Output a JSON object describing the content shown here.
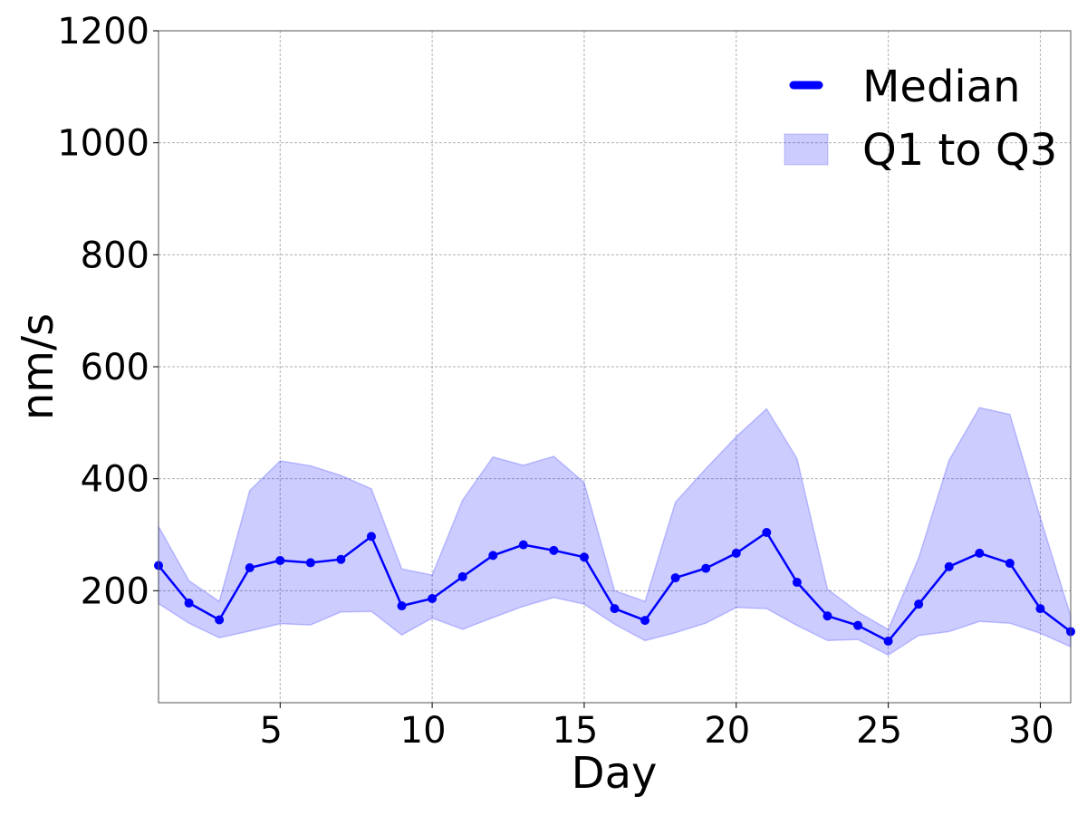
{
  "chart_data": {
    "type": "line",
    "title": "",
    "xlabel": "Day",
    "ylabel": "nm/s",
    "xlim": [
      1,
      31
    ],
    "ylim": [
      0,
      1200
    ],
    "x_ticks": [
      5,
      10,
      15,
      20,
      25,
      30
    ],
    "y_ticks": [
      200,
      400,
      600,
      800,
      1000,
      1200
    ],
    "grid": true,
    "legend_position": "top-right",
    "x": [
      1,
      2,
      3,
      4,
      5,
      6,
      7,
      8,
      9,
      10,
      11,
      12,
      13,
      14,
      15,
      16,
      17,
      18,
      19,
      20,
      21,
      22,
      23,
      24,
      25,
      26,
      27,
      28,
      29,
      30,
      31
    ],
    "series": [
      {
        "name": "Median",
        "color": "#0000ff",
        "values": [
          245,
          178,
          148,
          241,
          254,
          250,
          256,
          297,
          173,
          186,
          225,
          263,
          282,
          272,
          260,
          168,
          147,
          223,
          240,
          267,
          304,
          215,
          155,
          138,
          110,
          176,
          243,
          267,
          249,
          168,
          127
        ]
      },
      {
        "name": "Q1 to Q3",
        "color": "#0000ff",
        "opacity": 0.2,
        "lower": [
          177,
          142,
          116,
          128,
          141,
          139,
          162,
          163,
          121,
          151,
          131,
          152,
          172,
          188,
          176,
          140,
          111,
          125,
          142,
          170,
          168,
          138,
          111,
          113,
          85,
          120,
          127,
          145,
          142,
          124,
          100
        ],
        "upper": [
          315,
          218,
          181,
          379,
          432,
          423,
          406,
          382,
          239,
          228,
          362,
          439,
          424,
          440,
          393,
          200,
          181,
          358,
          418,
          475,
          525,
          436,
          203,
          162,
          131,
          259,
          433,
          527,
          515,
          331,
          155
        ]
      }
    ]
  }
}
